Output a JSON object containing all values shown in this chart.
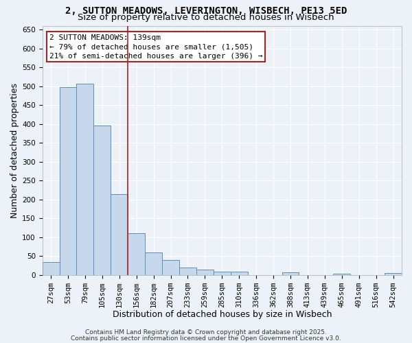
{
  "title_line1": "2, SUTTON MEADOWS, LEVERINGTON, WISBECH, PE13 5ED",
  "title_line2": "Size of property relative to detached houses in Wisbech",
  "xlabel": "Distribution of detached houses by size in Wisbech",
  "ylabel": "Number of detached properties",
  "categories": [
    "27sqm",
    "53sqm",
    "79sqm",
    "105sqm",
    "130sqm",
    "156sqm",
    "182sqm",
    "207sqm",
    "233sqm",
    "259sqm",
    "285sqm",
    "310sqm",
    "336sqm",
    "362sqm",
    "388sqm",
    "413sqm",
    "439sqm",
    "465sqm",
    "491sqm",
    "516sqm",
    "542sqm"
  ],
  "values": [
    33,
    497,
    507,
    395,
    213,
    110,
    60,
    40,
    19,
    13,
    9,
    9,
    0,
    0,
    6,
    0,
    0,
    3,
    0,
    0,
    5
  ],
  "bar_color": "#c8d8ec",
  "bar_edgecolor": "#5b8db8",
  "background_color": "#edf2f8",
  "grid_color": "#ffffff",
  "vline_color": "#aa2222",
  "annotation_line1": "2 SUTTON MEADOWS: 139sqm",
  "annotation_line2": "← 79% of detached houses are smaller (1,505)",
  "annotation_line3": "21% of semi-detached houses are larger (396) →",
  "annotation_box_color": "#ffffff",
  "annotation_box_edgecolor": "#aa2222",
  "ylim": [
    0,
    660
  ],
  "yticks": [
    0,
    50,
    100,
    150,
    200,
    250,
    300,
    350,
    400,
    450,
    500,
    550,
    600,
    650
  ],
  "footer_line1": "Contains HM Land Registry data © Crown copyright and database right 2025.",
  "footer_line2": "Contains public sector information licensed under the Open Government Licence v3.0.",
  "title_fontsize": 10,
  "subtitle_fontsize": 9.5,
  "axis_label_fontsize": 9,
  "tick_fontsize": 7.5,
  "annotation_fontsize": 8,
  "footer_fontsize": 6.5,
  "vline_x_index": 4
}
